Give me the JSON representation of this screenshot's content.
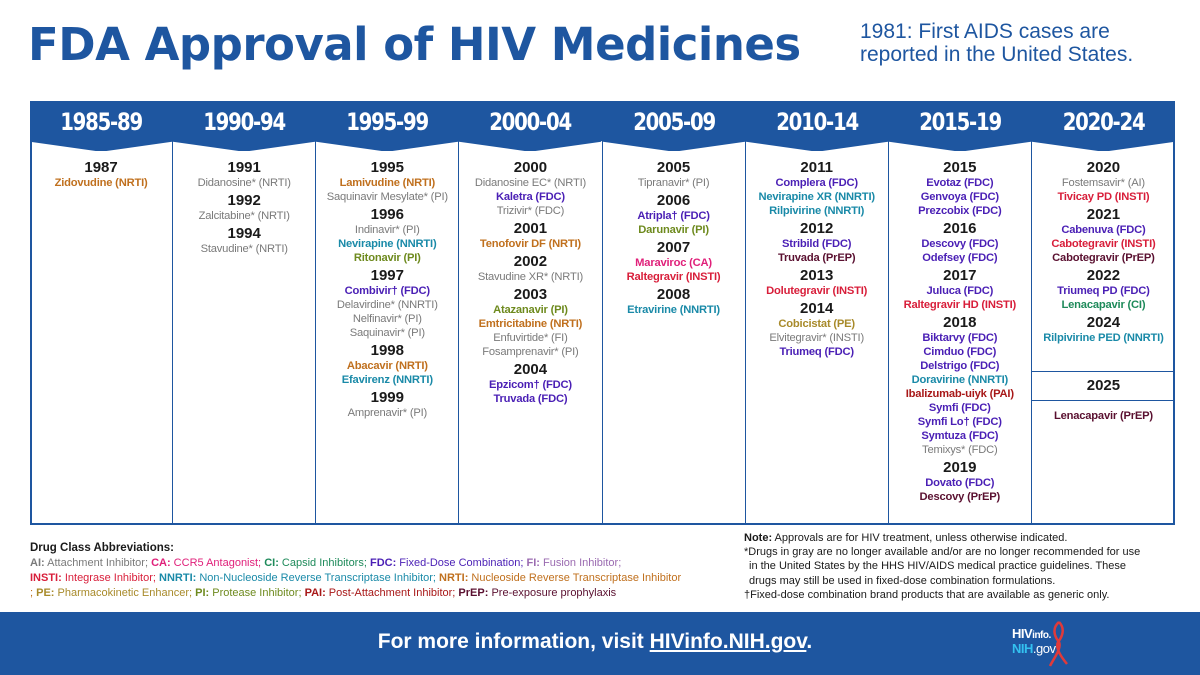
{
  "title": "FDA Approval of HIV Medicines",
  "subtitle": "1981: First AIDS cases are reported in the United States.",
  "colors": {
    "brand_blue": "#1e56a0",
    "NRTI": "#c0701e",
    "gray": "#7a7a7a",
    "NNRTI": "#1a8aa8",
    "PI": "#6e8a1e",
    "FDC": "#4a1fb5",
    "CA": "#e0207a",
    "INSTI": "#d81e3a",
    "PE": "#a88a2a",
    "PrEP": "#5a1030",
    "PAI": "#a81818",
    "CI": "#1e8a5a",
    "AI": "#7a7a7a",
    "FI": "#9a6ab0"
  },
  "columns": [
    {
      "period": "1985-89",
      "years": [
        {
          "year": "1987",
          "drugs": [
            {
              "name": "Zidovudine (NRTI)",
              "cls": "NRTI"
            }
          ]
        }
      ]
    },
    {
      "period": "1990-94",
      "years": [
        {
          "year": "1991",
          "drugs": [
            {
              "name": "Didanosine* (NRTI)",
              "cls": "gray"
            }
          ]
        },
        {
          "year": "1992",
          "drugs": [
            {
              "name": "Zalcitabine* (NRTI)",
              "cls": "gray"
            }
          ]
        },
        {
          "year": "1994",
          "drugs": [
            {
              "name": "Stavudine* (NRTI)",
              "cls": "gray"
            }
          ]
        }
      ]
    },
    {
      "period": "1995-99",
      "years": [
        {
          "year": "1995",
          "drugs": [
            {
              "name": "Lamivudine (NRTI)",
              "cls": "NRTI"
            },
            {
              "name": "Saquinavir Mesylate* (PI)",
              "cls": "gray"
            }
          ]
        },
        {
          "year": "1996",
          "drugs": [
            {
              "name": "Indinavir* (PI)",
              "cls": "gray"
            },
            {
              "name": "Nevirapine (NNRTI)",
              "cls": "NNRTI"
            },
            {
              "name": "Ritonavir (PI)",
              "cls": "PI"
            }
          ]
        },
        {
          "year": "1997",
          "drugs": [
            {
              "name": "Combivir† (FDC)",
              "cls": "FDC"
            },
            {
              "name": "Delavirdine* (NNRTI)",
              "cls": "gray"
            },
            {
              "name": "Nelfinavir* (PI)",
              "cls": "gray"
            },
            {
              "name": "Saquinavir* (PI)",
              "cls": "gray"
            }
          ]
        },
        {
          "year": "1998",
          "drugs": [
            {
              "name": "Abacavir (NRTI)",
              "cls": "NRTI"
            },
            {
              "name": "Efavirenz (NNRTI)",
              "cls": "NNRTI"
            }
          ]
        },
        {
          "year": "1999",
          "drugs": [
            {
              "name": "Amprenavir* (PI)",
              "cls": "gray"
            }
          ]
        }
      ]
    },
    {
      "period": "2000-04",
      "years": [
        {
          "year": "2000",
          "drugs": [
            {
              "name": "Didanosine EC* (NRTI)",
              "cls": "gray"
            },
            {
              "name": "Kaletra (FDC)",
              "cls": "FDC"
            },
            {
              "name": "Trizivir* (FDC)",
              "cls": "gray"
            }
          ]
        },
        {
          "year": "2001",
          "drugs": [
            {
              "name": "Tenofovir DF (NRTI)",
              "cls": "NRTI"
            }
          ]
        },
        {
          "year": "2002",
          "drugs": [
            {
              "name": "Stavudine XR* (NRTI)",
              "cls": "gray"
            }
          ]
        },
        {
          "year": "2003",
          "drugs": [
            {
              "name": "Atazanavir (PI)",
              "cls": "PI"
            },
            {
              "name": "Emtricitabine (NRTI)",
              "cls": "NRTI"
            },
            {
              "name": "Enfuvirtide* (FI)",
              "cls": "gray"
            },
            {
              "name": "Fosamprenavir* (PI)",
              "cls": "gray"
            }
          ]
        },
        {
          "year": "2004",
          "drugs": [
            {
              "name": "Epzicom† (FDC)",
              "cls": "FDC"
            },
            {
              "name": "Truvada (FDC)",
              "cls": "FDC"
            }
          ]
        }
      ]
    },
    {
      "period": "2005-09",
      "years": [
        {
          "year": "2005",
          "drugs": [
            {
              "name": "Tipranavir* (PI)",
              "cls": "gray"
            }
          ]
        },
        {
          "year": "2006",
          "drugs": [
            {
              "name": "Atripla† (FDC)",
              "cls": "FDC"
            },
            {
              "name": "Darunavir (PI)",
              "cls": "PI"
            }
          ]
        },
        {
          "year": "2007",
          "drugs": [
            {
              "name": "Maraviroc (CA)",
              "cls": "CA"
            },
            {
              "name": "Raltegravir (INSTI)",
              "cls": "INSTI"
            }
          ]
        },
        {
          "year": "2008",
          "drugs": [
            {
              "name": "Etravirine (NNRTI)",
              "cls": "NNRTI"
            }
          ]
        }
      ]
    },
    {
      "period": "2010-14",
      "years": [
        {
          "year": "2011",
          "drugs": [
            {
              "name": "Complera (FDC)",
              "cls": "FDC"
            },
            {
              "name": "Nevirapine XR (NNRTI)",
              "cls": "NNRTI"
            },
            {
              "name": "Rilpivirine (NNRTI)",
              "cls": "NNRTI"
            }
          ]
        },
        {
          "year": "2012",
          "drugs": [
            {
              "name": "Stribild (FDC)",
              "cls": "FDC"
            },
            {
              "name": "Truvada (PrEP)",
              "cls": "PrEP"
            }
          ]
        },
        {
          "year": "2013",
          "drugs": [
            {
              "name": "Dolutegravir (INSTI)",
              "cls": "INSTI"
            }
          ]
        },
        {
          "year": "2014",
          "drugs": [
            {
              "name": "Cobicistat (PE)",
              "cls": "PE"
            },
            {
              "name": "Elvitegravir* (INSTI)",
              "cls": "gray"
            },
            {
              "name": "Triumeq (FDC)",
              "cls": "FDC"
            }
          ]
        }
      ]
    },
    {
      "period": "2015-19",
      "years": [
        {
          "year": "2015",
          "drugs": [
            {
              "name": "Evotaz (FDC)",
              "cls": "FDC"
            },
            {
              "name": "Genvoya (FDC)",
              "cls": "FDC"
            },
            {
              "name": "Prezcobix (FDC)",
              "cls": "FDC"
            }
          ]
        },
        {
          "year": "2016",
          "drugs": [
            {
              "name": "Descovy (FDC)",
              "cls": "FDC"
            },
            {
              "name": "Odefsey (FDC)",
              "cls": "FDC"
            }
          ]
        },
        {
          "year": "2017",
          "drugs": [
            {
              "name": "Juluca (FDC)",
              "cls": "FDC"
            },
            {
              "name": "Raltegravir HD (INSTI)",
              "cls": "INSTI"
            }
          ]
        },
        {
          "year": "2018",
          "drugs": [
            {
              "name": "Biktarvy (FDC)",
              "cls": "FDC"
            },
            {
              "name": "Cimduo (FDC)",
              "cls": "FDC"
            },
            {
              "name": "Delstrigo (FDC)",
              "cls": "FDC"
            },
            {
              "name": "Doravirine (NNRTI)",
              "cls": "NNRTI"
            },
            {
              "name": "Ibalizumab-uiyk (PAI)",
              "cls": "PAI"
            },
            {
              "name": "Symfi (FDC)",
              "cls": "FDC"
            },
            {
              "name": "Symfi Lo† (FDC)",
              "cls": "FDC"
            },
            {
              "name": "Symtuza (FDC)",
              "cls": "FDC"
            },
            {
              "name": "Temixys* (FDC)",
              "cls": "gray"
            }
          ]
        },
        {
          "year": "2019",
          "drugs": [
            {
              "name": "Dovato (FDC)",
              "cls": "FDC"
            },
            {
              "name": "Descovy (PrEP)",
              "cls": "PrEP"
            }
          ]
        }
      ]
    },
    {
      "period": "2020-24",
      "years": [
        {
          "year": "2020",
          "drugs": [
            {
              "name": "Fostemsavir* (AI)",
              "cls": "gray"
            },
            {
              "name": "Tivicay PD (INSTI)",
              "cls": "INSTI"
            }
          ]
        },
        {
          "year": "2021",
          "drugs": [
            {
              "name": "Cabenuva (FDC)",
              "cls": "FDC"
            },
            {
              "name": "Cabotegravir (INSTI)",
              "cls": "INSTI"
            },
            {
              "name": "Cabotegravir (PrEP)",
              "cls": "PrEP"
            }
          ]
        },
        {
          "year": "2022",
          "drugs": [
            {
              "name": "Triumeq PD (FDC)",
              "cls": "FDC"
            },
            {
              "name": "Lenacapavir (CI)",
              "cls": "CI"
            }
          ]
        },
        {
          "year": "2024",
          "drugs": [
            {
              "name": "Rilpivirine PED (NNRTI)",
              "cls": "NNRTI"
            }
          ]
        }
      ],
      "extra": {
        "year": "2025",
        "drugs": [
          {
            "name": "Lenacapavir (PrEP)",
            "cls": "PrEP"
          }
        ]
      }
    }
  ],
  "abbreviations": {
    "heading": "Drug Class Abbreviations:",
    "items": [
      {
        "key": "AI:",
        "text": " Attachment Inhibitor; ",
        "cls": "AI"
      },
      {
        "key": "CA:",
        "text": " CCR5 Antagonist; ",
        "cls": "CA"
      },
      {
        "key": "CI:",
        "text": " Capsid Inhibitors; ",
        "cls": "CI"
      },
      {
        "key": "FDC:",
        "text": " Fixed-Dose Combination; ",
        "cls": "FDC"
      },
      {
        "key": "FI:",
        "text": " Fusion Inhibitor;",
        "cls": "FI"
      },
      {
        "key": "INSTI:",
        "text": " Integrase Inhibitor; ",
        "cls": "INSTI",
        "break_before": true
      },
      {
        "key": "NNRTI:",
        "text": " Non-Nucleoside Reverse Transcriptase Inhibitor; ",
        "cls": "NNRTI"
      },
      {
        "key": "NRTI:",
        "text": " Nucleoside Reverse Transcriptase Inhibitor",
        "cls": "NRTI"
      },
      {
        "key": "",
        "text": "; ",
        "cls": "NRTI"
      },
      {
        "key": "PE:",
        "text": " Pharmacokinetic Enhancer; ",
        "cls": "PE"
      },
      {
        "key": "PI:",
        "text": " Protease Inhibitor; ",
        "cls": "PI"
      },
      {
        "key": "PAI:",
        "text": " Post-Attachment Inhibitor; ",
        "cls": "PAI"
      },
      {
        "key": "PrEP:",
        "text": " Pre-exposure prophylaxis",
        "cls": "PrEP"
      }
    ]
  },
  "notes": {
    "note_label": "Note:",
    "note_text": " Approvals are for HIV treatment, unless otherwise indicated.",
    "asterisk_lines": [
      "*Drugs in gray are no longer available and/or are no longer recommended for use",
      "in the United States by the HHS HIV/AIDS medical practice guidelines. These",
      "drugs may still be used in fixed-dose combination formulations."
    ],
    "dagger_line": "†Fixed-dose combination brand products that are available as generic only."
  },
  "footer": {
    "prefix": "For more information, visit ",
    "link_text": "HIVinfo.NIH.gov",
    "suffix": ".",
    "logo_line1_a": "HIV",
    "logo_line1_b": "info.",
    "logo_line2_a": "NIH",
    "logo_line2_b": ".gov"
  }
}
